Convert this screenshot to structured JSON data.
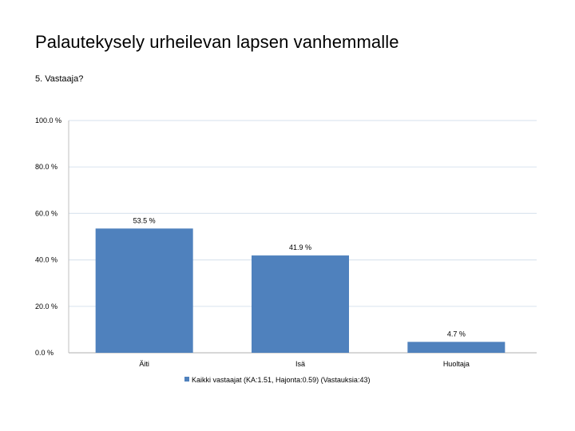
{
  "page": {
    "title": "Palautekysely urheilevan lapsen vanhemmalle",
    "subtitle": "5. Vastaaja?"
  },
  "colors": {
    "bar": "#4f81bd",
    "grid": "#dde6f0",
    "axis": "#bfbfbf"
  },
  "chart_data": {
    "type": "bar",
    "title": "5. Vastaaja?",
    "categories": [
      "Äiti",
      "Isä",
      "Huoltaja"
    ],
    "series": [
      {
        "name": "Kaikki vastaajat (KA:1.51, Hajonta:0.59) (Vastauksia:43)",
        "values": [
          53.5,
          41.9,
          4.7
        ],
        "labels": [
          "53.5 %",
          "41.9 %",
          "4.7 %"
        ]
      }
    ],
    "yticks": [
      0,
      20,
      40,
      60,
      80,
      100
    ],
    "ytick_labels": [
      "0.0 %",
      "20.0 %",
      "40.0 %",
      "60.0 %",
      "80.0 %",
      "100.0 %"
    ],
    "ylim": [
      0,
      100
    ],
    "xlabel": "",
    "ylabel": "",
    "grid": true,
    "legend_position": "bottom"
  }
}
